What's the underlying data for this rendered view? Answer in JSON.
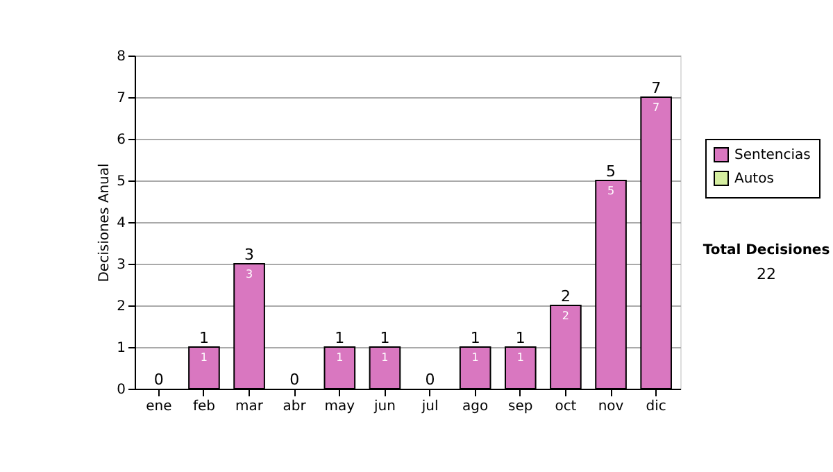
{
  "chart_data": {
    "type": "bar",
    "stacked": true,
    "ylabel": "Decisiones Anual",
    "categories": [
      "ene",
      "feb",
      "mar",
      "abr",
      "may",
      "jun",
      "jul",
      "ago",
      "sep",
      "oct",
      "nov",
      "dic"
    ],
    "series": [
      {
        "name": "Sentencias",
        "color": "#d977c0",
        "values": [
          0,
          1,
          3,
          0,
          1,
          1,
          0,
          1,
          1,
          2,
          5,
          7
        ],
        "value_labels": [
          null,
          "1",
          "3",
          null,
          "1",
          "1",
          null,
          "1",
          "1",
          "2",
          "5",
          "7"
        ]
      },
      {
        "name": "Autos",
        "color": "#d5eea0",
        "values": [
          0,
          0,
          0,
          0,
          0,
          0,
          0,
          0,
          0,
          0,
          0,
          0
        ]
      }
    ],
    "totals": [
      "0",
      "1",
      "3",
      "0",
      "1",
      "1",
      "0",
      "1",
      "1",
      "2",
      "5",
      "7"
    ],
    "ylim": [
      0,
      8
    ],
    "yticks": [
      0,
      1,
      2,
      3,
      4,
      5,
      6,
      7,
      8
    ],
    "grid": "y",
    "legend": "right",
    "annotations": [
      "Total Decisiones",
      "22"
    ]
  }
}
